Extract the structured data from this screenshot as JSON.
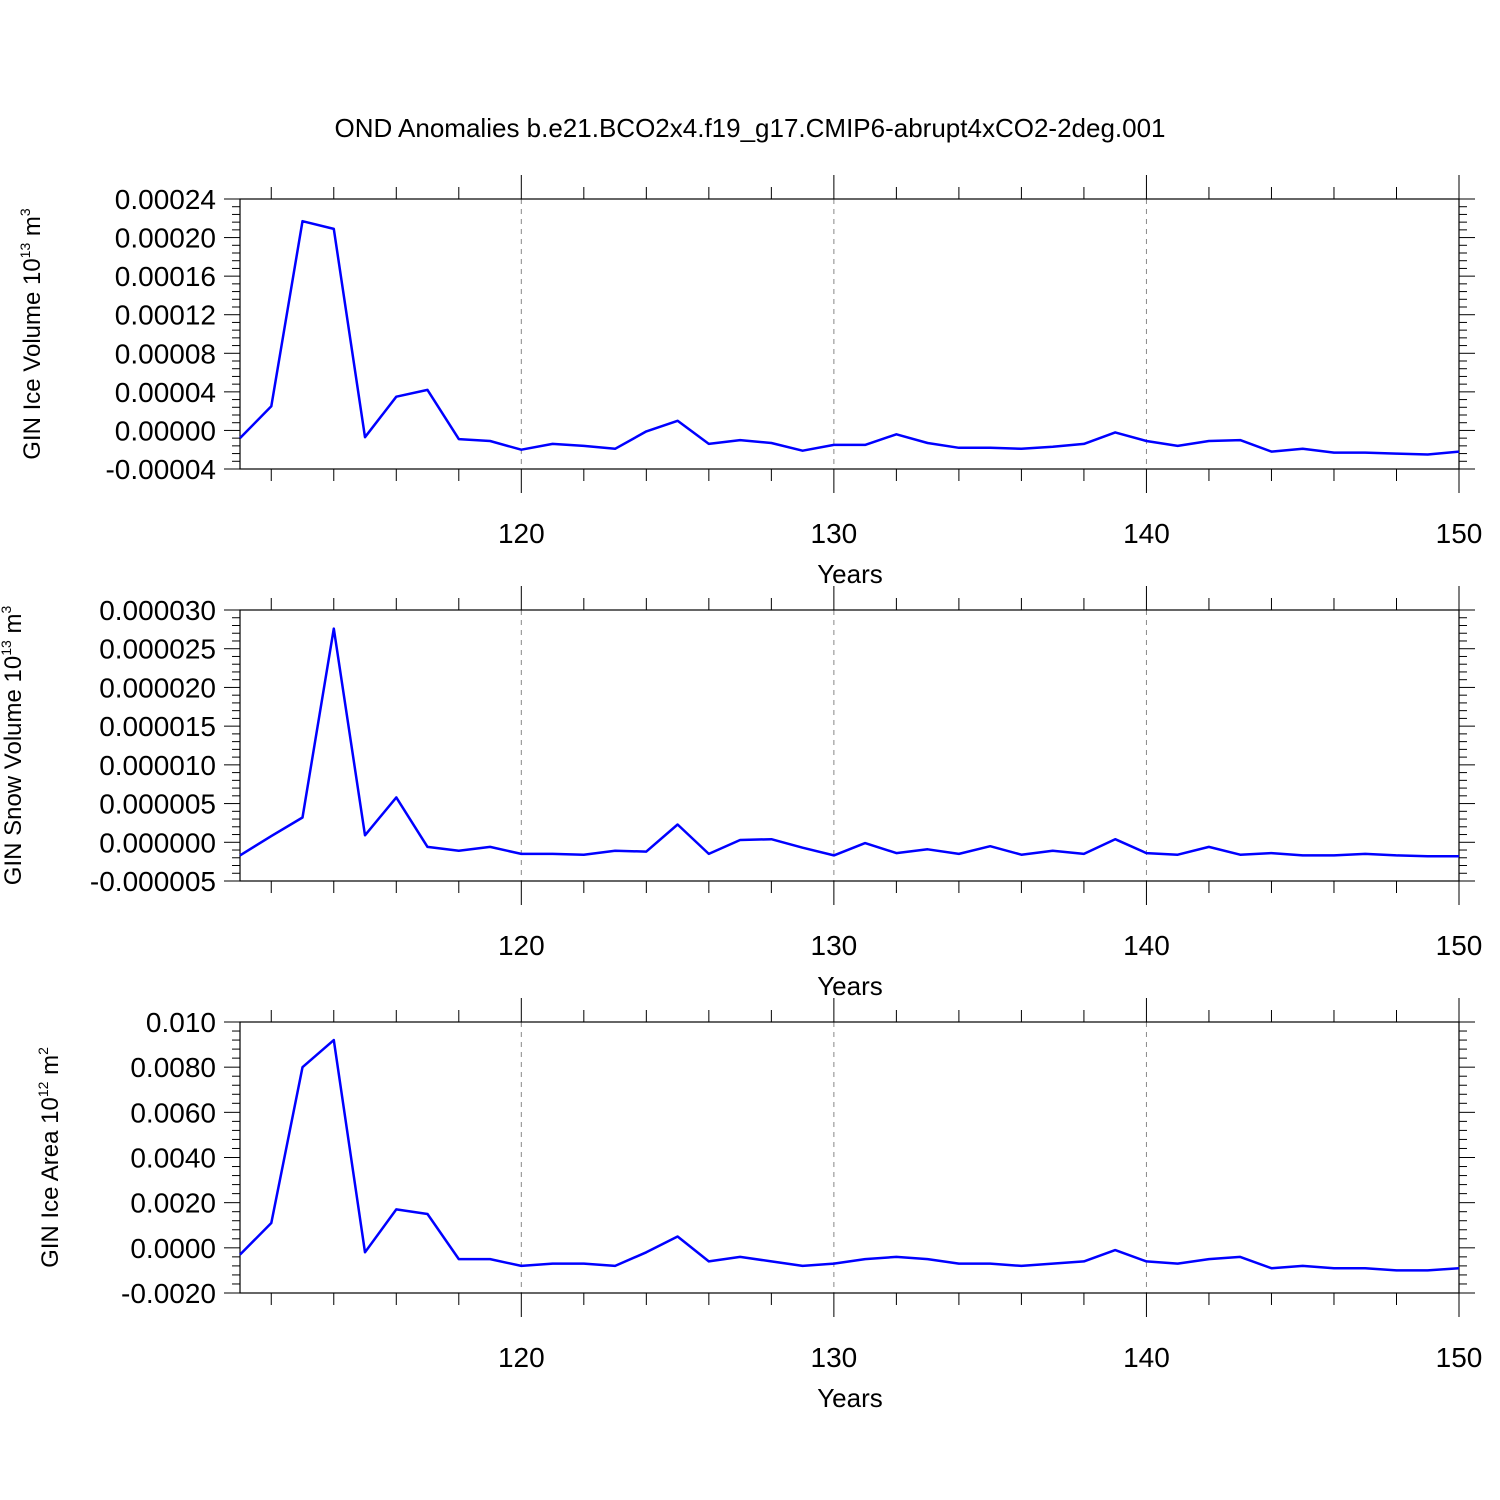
{
  "title": "OND Anomalies b.e21.BCO2x4.f19_g17.CMIP6-abrupt4xCO2-2deg.001",
  "line_color": "#0000ff",
  "chart_data": [
    {
      "type": "line",
      "xlabel": "Years",
      "ylabel": {
        "main": "GIN Ice Volume 10",
        "sup": "13",
        "unit": " m",
        "unit_sup": "3"
      },
      "xlim": [
        111,
        150
      ],
      "xticks": [
        120,
        130,
        140,
        150
      ],
      "ylim": [
        -4e-05,
        0.00024
      ],
      "yticks": [
        "-0.00004",
        "0.00000",
        "0.00004",
        "0.00008",
        "0.00012",
        "0.00016",
        "0.00020",
        "0.00024"
      ],
      "grid": "dashed vertical at major x ticks",
      "x": [
        111,
        112,
        113,
        114,
        115,
        116,
        117,
        118,
        119,
        120,
        121,
        122,
        123,
        124,
        125,
        126,
        127,
        128,
        129,
        130,
        131,
        132,
        133,
        134,
        135,
        136,
        137,
        138,
        139,
        140,
        141,
        142,
        143,
        144,
        145,
        146,
        147,
        148,
        149,
        150
      ],
      "values": [
        -8e-06,
        2.5e-05,
        0.000217,
        0.000209,
        -7e-06,
        3.5e-05,
        4.2e-05,
        -9e-06,
        -1.1e-05,
        -2e-05,
        -1.4e-05,
        -1.6e-05,
        -1.9e-05,
        -1e-06,
        1e-05,
        -1.4e-05,
        -1e-05,
        -1.3e-05,
        -2.1e-05,
        -1.5e-05,
        -1.5e-05,
        -4e-06,
        -1.3e-05,
        -1.8e-05,
        -1.8e-05,
        -1.9e-05,
        -1.7e-05,
        -1.4e-05,
        -2e-06,
        -1.1e-05,
        -1.6e-05,
        -1.1e-05,
        -1e-05,
        -2.2e-05,
        -1.9e-05,
        -2.3e-05,
        -2.3e-05,
        -2.4e-05,
        -2.5e-05,
        -2.2e-05
      ]
    },
    {
      "type": "line",
      "xlabel": "Years",
      "ylabel": {
        "main": "GIN Snow Volume 10",
        "sup": "13",
        "unit": " m",
        "unit_sup": "3"
      },
      "xlim": [
        111,
        150
      ],
      "xticks": [
        120,
        130,
        140,
        150
      ],
      "ylim": [
        -5e-06,
        3e-05
      ],
      "yticks": [
        "-0.000005",
        "0.000000",
        "0.000005",
        "0.000010",
        "0.000015",
        "0.000020",
        "0.000025",
        "0.000030"
      ],
      "grid": "dashed vertical at major x ticks",
      "x": [
        111,
        112,
        113,
        114,
        115,
        116,
        117,
        118,
        119,
        120,
        121,
        122,
        123,
        124,
        125,
        126,
        127,
        128,
        129,
        130,
        131,
        132,
        133,
        134,
        135,
        136,
        137,
        138,
        139,
        140,
        141,
        142,
        143,
        144,
        145,
        146,
        147,
        148,
        149,
        150
      ],
      "values": [
        -1.7e-06,
        8e-07,
        3.2e-06,
        2.76e-05,
        9e-07,
        5.8e-06,
        -6e-07,
        -1.1e-06,
        -6e-07,
        -1.5e-06,
        -1.5e-06,
        -1.6e-06,
        -1.1e-06,
        -1.2e-06,
        2.3e-06,
        -1.5e-06,
        3e-07,
        4e-07,
        -7e-07,
        -1.7e-06,
        -1e-07,
        -1.4e-06,
        -9e-07,
        -1.5e-06,
        -5e-07,
        -1.6e-06,
        -1.1e-06,
        -1.5e-06,
        4e-07,
        -1.4e-06,
        -1.6e-06,
        -6e-07,
        -1.6e-06,
        -1.4e-06,
        -1.7e-06,
        -1.7e-06,
        -1.5e-06,
        -1.7e-06,
        -1.8e-06,
        -1.8e-06
      ]
    },
    {
      "type": "line",
      "xlabel": "Years",
      "ylabel": {
        "main": "GIN Ice Area 10",
        "sup": "12",
        "unit": " m",
        "unit_sup": "2"
      },
      "xlim": [
        111,
        150
      ],
      "xticks": [
        120,
        130,
        140,
        150
      ],
      "ylim": [
        -0.002,
        0.01
      ],
      "yticks": [
        "-0.0020",
        "0.0000",
        "0.0020",
        "0.0040",
        "0.0060",
        "0.0080",
        "0.010"
      ],
      "grid": "dashed vertical at major x ticks",
      "x": [
        111,
        112,
        113,
        114,
        115,
        116,
        117,
        118,
        119,
        120,
        121,
        122,
        123,
        124,
        125,
        126,
        127,
        128,
        129,
        130,
        131,
        132,
        133,
        134,
        135,
        136,
        137,
        138,
        139,
        140,
        141,
        142,
        143,
        144,
        145,
        146,
        147,
        148,
        149,
        150
      ],
      "values": [
        -0.0003,
        0.0011,
        0.008,
        0.0092,
        -0.0002,
        0.0017,
        0.0015,
        -0.0005,
        -0.0005,
        -0.0008,
        -0.0007,
        -0.0007,
        -0.0008,
        -0.0002,
        0.0005,
        -0.0006,
        -0.0004,
        -0.0006,
        -0.0008,
        -0.0007,
        -0.0005,
        -0.0004,
        -0.0005,
        -0.0007,
        -0.0007,
        -0.0008,
        -0.0007,
        -0.0006,
        -0.0001,
        -0.0006,
        -0.0007,
        -0.0005,
        -0.0004,
        -0.0009,
        -0.0008,
        -0.0009,
        -0.0009,
        -0.001,
        -0.001,
        -0.0009
      ]
    }
  ]
}
